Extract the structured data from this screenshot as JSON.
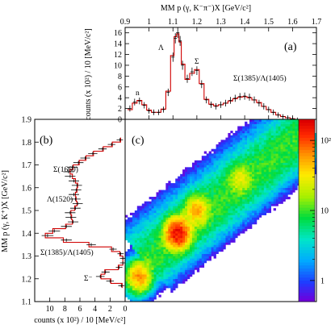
{
  "chart_data": [
    {
      "panel": "(a)",
      "type": "histogram",
      "xlabel": "MM p (γ, K⁻π⁻)X  [GeV/c²]",
      "ylabel": "counts (x 10²) / 10  [MeV/c²]",
      "xlim": [
        0.9,
        1.7
      ],
      "ylim": [
        0,
        17
      ],
      "xticks": [
        "0.9",
        "1",
        "1.1",
        "1.2",
        "1.3",
        "1.4",
        "1.5",
        "1.6",
        "1.7"
      ],
      "yticks": [
        "0",
        "2",
        "4",
        "6",
        "8",
        "10",
        "12",
        "14",
        "16"
      ],
      "annotations": [
        "n",
        "Λ",
        "Σ",
        "Σ(1385)/Λ(1405)"
      ],
      "series": [
        {
          "style": "data-points-with-errors",
          "x": [
            0.92,
            0.94,
            0.96,
            0.98,
            1.0,
            1.02,
            1.04,
            1.06,
            1.08,
            1.1,
            1.11,
            1.12,
            1.13,
            1.14,
            1.16,
            1.18,
            1.2,
            1.22,
            1.24,
            1.26,
            1.28,
            1.3,
            1.32,
            1.34,
            1.36,
            1.38,
            1.4,
            1.42,
            1.44,
            1.46,
            1.48,
            1.5,
            1.52,
            1.54,
            1.56,
            1.58,
            1.6,
            1.62
          ],
          "y": [
            2.0,
            3.2,
            3.4,
            2.6,
            1.6,
            1.3,
            1.3,
            1.8,
            5.0,
            11.5,
            15.0,
            16.0,
            14.5,
            10.0,
            7.5,
            8.8,
            9.0,
            6.5,
            3.6,
            2.7,
            2.4,
            2.7,
            3.0,
            3.5,
            3.9,
            4.2,
            4.3,
            4.1,
            3.6,
            3.0,
            2.4,
            1.8,
            1.3,
            0.8,
            0.5,
            0.3,
            0.1,
            0.0
          ]
        },
        {
          "style": "fit-curve",
          "x": [
            0.92,
            0.94,
            0.96,
            0.98,
            1.0,
            1.02,
            1.04,
            1.06,
            1.08,
            1.1,
            1.11,
            1.12,
            1.13,
            1.14,
            1.16,
            1.18,
            1.2,
            1.22,
            1.24,
            1.26,
            1.28,
            1.3,
            1.32,
            1.34,
            1.36,
            1.38,
            1.4,
            1.42,
            1.44,
            1.46,
            1.48,
            1.5,
            1.52,
            1.54,
            1.56,
            1.58,
            1.6,
            1.62
          ],
          "y": [
            1.8,
            3.0,
            3.5,
            2.7,
            1.7,
            1.3,
            1.3,
            1.9,
            5.2,
            11.8,
            15.3,
            15.8,
            14.3,
            10.2,
            7.4,
            8.5,
            9.2,
            6.6,
            3.7,
            2.8,
            2.5,
            2.7,
            3.0,
            3.4,
            3.8,
            4.1,
            4.2,
            4.0,
            3.6,
            3.1,
            2.4,
            1.8,
            1.3,
            0.8,
            0.5,
            0.3,
            0.1,
            0.0
          ]
        }
      ]
    },
    {
      "panel": "(b)",
      "type": "histogram",
      "orientation": "horizontal",
      "xlabel": "counts (x 10²) / 10  [MeV/c²]",
      "ylabel": "MM p (γ, K⁺)X  [GeV/c²]",
      "xlim": [
        12,
        0
      ],
      "ylim": [
        1.1,
        1.9
      ],
      "xticks": [
        "10",
        "8",
        "6",
        "4",
        "2",
        "0"
      ],
      "yticks": [
        "1.1",
        "1.2",
        "1.3",
        "1.4",
        "1.5",
        "1.6",
        "1.7",
        "1.8",
        "1.9"
      ],
      "annotations": [
        "Σ(1660)",
        "Λ(1520)",
        "Σ(1385)/Λ(1405)",
        "Σ⁻"
      ],
      "series": [
        {
          "style": "data-points-with-errors",
          "y": [
            1.17,
            1.19,
            1.21,
            1.23,
            1.25,
            1.27,
            1.29,
            1.31,
            1.33,
            1.35,
            1.37,
            1.39,
            1.41,
            1.43,
            1.45,
            1.47,
            1.49,
            1.51,
            1.53,
            1.55,
            1.57,
            1.59,
            1.61,
            1.63,
            1.65,
            1.67,
            1.69,
            1.71,
            1.73,
            1.75,
            1.77,
            1.79,
            1.81
          ],
          "x": [
            0.5,
            2.0,
            3.3,
            2.6,
            0.8,
            0.3,
            0.3,
            0.6,
            1.6,
            4.5,
            7.8,
            10.3,
            9.4,
            7.8,
            6.9,
            7.2,
            7.3,
            6.6,
            6.3,
            6.6,
            6.8,
            6.5,
            6.4,
            6.8,
            7.3,
            7.5,
            7.0,
            6.2,
            5.3,
            4.3,
            3.0,
            1.8,
            0.7
          ]
        },
        {
          "style": "fit-curve",
          "y": [
            1.17,
            1.19,
            1.21,
            1.23,
            1.25,
            1.27,
            1.29,
            1.31,
            1.33,
            1.35,
            1.37,
            1.39,
            1.41,
            1.43,
            1.45,
            1.47,
            1.49,
            1.51,
            1.53,
            1.55,
            1.57,
            1.59,
            1.61,
            1.63,
            1.65,
            1.67,
            1.69,
            1.71,
            1.73,
            1.75,
            1.77,
            1.79,
            1.81
          ],
          "x": [
            0.4,
            1.9,
            3.2,
            2.7,
            0.9,
            0.3,
            0.3,
            0.7,
            1.8,
            4.8,
            8.2,
            10.6,
            9.6,
            7.9,
            7.0,
            7.1,
            7.2,
            6.7,
            6.4,
            6.5,
            6.6,
            6.4,
            6.3,
            6.6,
            7.0,
            7.3,
            6.9,
            6.1,
            5.2,
            4.2,
            2.9,
            1.7,
            0.6
          ]
        }
      ]
    },
    {
      "panel": "(c)",
      "type": "heatmap",
      "xlim": [
        0.9,
        1.7
      ],
      "ylim": [
        1.1,
        1.9
      ],
      "colorbar": {
        "scale": "log",
        "ticks": [
          "1",
          "10",
          "10²"
        ],
        "range": [
          0.5,
          200
        ]
      },
      "bands": [
        {
          "name": "ridge",
          "start": [
            0.92,
            1.18
          ],
          "end": [
            1.65,
            1.82
          ],
          "width": 0.06,
          "peak": 4
        },
        {
          "name": "upper-band",
          "start": [
            1.0,
            1.32
          ],
          "end": [
            1.62,
            1.84
          ],
          "width": 0.08,
          "peak": 6
        }
      ],
      "hotspots": [
        {
          "x": 1.12,
          "y": 1.4,
          "peak": 160
        },
        {
          "x": 1.2,
          "y": 1.5,
          "peak": 45
        },
        {
          "x": 0.96,
          "y": 1.21,
          "peak": 60
        },
        {
          "x": 1.38,
          "y": 1.64,
          "peak": 20
        }
      ]
    }
  ]
}
